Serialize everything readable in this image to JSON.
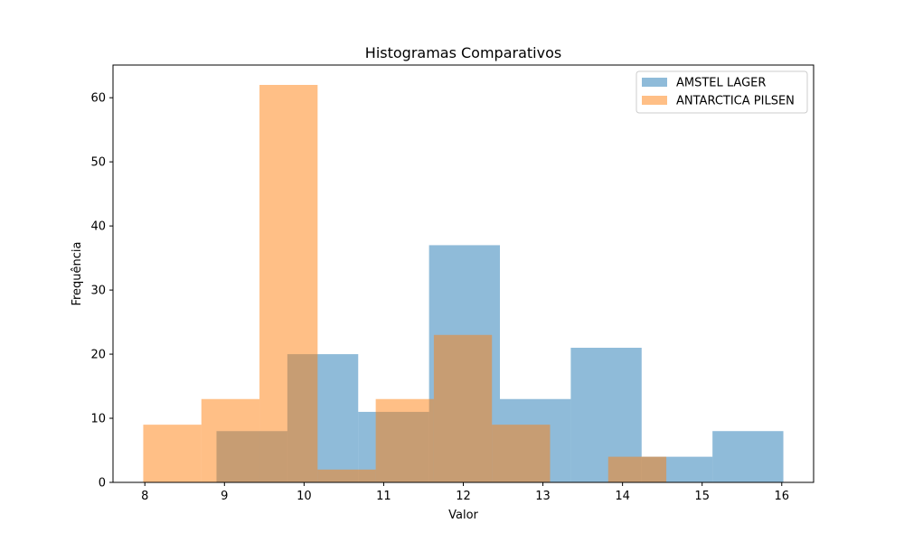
{
  "chart_data": {
    "type": "histogram",
    "title": "Histogramas Comparativos",
    "xlabel": "Valor",
    "ylabel": "Frequência",
    "xlim": [
      7.6,
      16.4
    ],
    "ylim": [
      0,
      65.1
    ],
    "xticks": [
      8,
      9,
      10,
      11,
      12,
      13,
      14,
      15,
      16
    ],
    "yticks": [
      0,
      10,
      20,
      30,
      40,
      50,
      60
    ],
    "legend_position": "top-right",
    "grid": false,
    "series": [
      {
        "name": "AMSTEL LAGER",
        "color": "#1f77b4",
        "opacity": 0.5,
        "bins": [
          {
            "start": 8.9,
            "end": 9.79,
            "count": 8
          },
          {
            "start": 9.79,
            "end": 10.68,
            "count": 20
          },
          {
            "start": 10.68,
            "end": 11.57,
            "count": 11
          },
          {
            "start": 11.57,
            "end": 12.46,
            "count": 37
          },
          {
            "start": 12.46,
            "end": 13.35,
            "count": 13
          },
          {
            "start": 13.35,
            "end": 14.24,
            "count": 21
          },
          {
            "start": 14.24,
            "end": 15.13,
            "count": 4
          },
          {
            "start": 15.13,
            "end": 16.02,
            "count": 8
          }
        ]
      },
      {
        "name": "ANTARCTICA PILSEN",
        "color": "#ff7f0e",
        "opacity": 0.5,
        "bins": [
          {
            "start": 7.98,
            "end": 8.71,
            "count": 9
          },
          {
            "start": 8.71,
            "end": 9.44,
            "count": 13
          },
          {
            "start": 9.44,
            "end": 10.17,
            "count": 62
          },
          {
            "start": 10.17,
            "end": 10.9,
            "count": 2
          },
          {
            "start": 10.9,
            "end": 11.63,
            "count": 13
          },
          {
            "start": 11.63,
            "end": 12.36,
            "count": 23
          },
          {
            "start": 12.36,
            "end": 13.09,
            "count": 9
          },
          {
            "start": 13.09,
            "end": 13.82,
            "count": 0
          },
          {
            "start": 13.82,
            "end": 14.55,
            "count": 4
          }
        ]
      }
    ]
  }
}
